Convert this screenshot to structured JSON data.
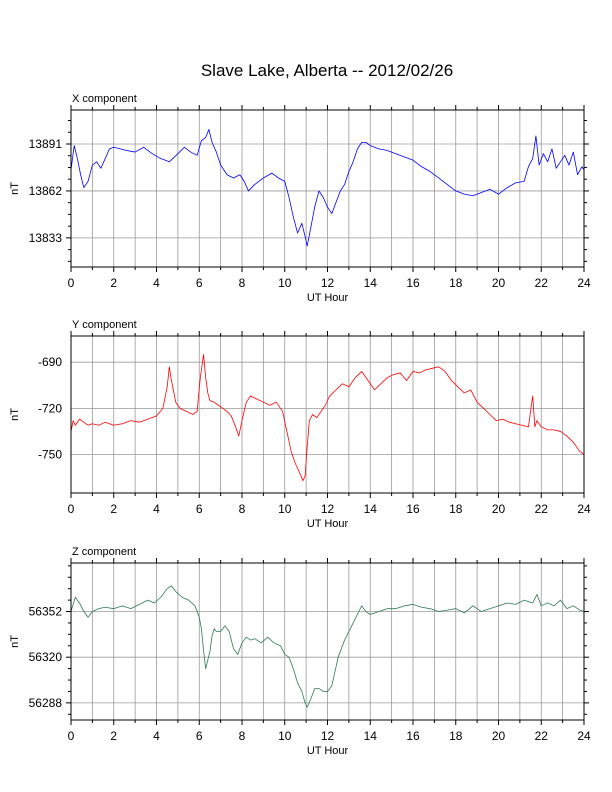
{
  "page": {
    "title": "Slave Lake, Alberta -- 2012/02/26"
  },
  "chart_data": [
    {
      "type": "line",
      "title": "X component",
      "xlabel": "UT Hour",
      "ylabel": "nT",
      "xlim": [
        0,
        24
      ],
      "ylim": [
        13815,
        13912
      ],
      "xticks": [
        0,
        2,
        4,
        6,
        8,
        10,
        12,
        14,
        16,
        18,
        20,
        22,
        24
      ],
      "yticks": [
        13833,
        13862,
        13891
      ],
      "grid": true,
      "color": "#0000ff",
      "series": [
        {
          "x": [
            0,
            0.15,
            0.3,
            0.45,
            0.6,
            0.8,
            1.0,
            1.2,
            1.4,
            1.6,
            1.8,
            2.0,
            2.3,
            2.6,
            3.0,
            3.4,
            3.8,
            4.2,
            4.6,
            5.0,
            5.3,
            5.6,
            5.9,
            6.1,
            6.3,
            6.45,
            6.6,
            6.8,
            7.0,
            7.3,
            7.6,
            7.9,
            8.1,
            8.3,
            8.6,
            9.0,
            9.4,
            9.7,
            10.0,
            10.2,
            10.4,
            10.6,
            10.8,
            10.95,
            11.05,
            11.2,
            11.4,
            11.6,
            11.8,
            12.0,
            12.2,
            12.4,
            12.6,
            12.8,
            13.0,
            13.2,
            13.4,
            13.6,
            13.8,
            14.0,
            14.4,
            14.8,
            15.2,
            15.6,
            16.0,
            16.4,
            16.8,
            17.2,
            17.6,
            18.0,
            18.4,
            18.8,
            19.2,
            19.6,
            20.0,
            20.4,
            20.8,
            21.2,
            21.4,
            21.6,
            21.75,
            21.9,
            22.1,
            22.3,
            22.5,
            22.7,
            22.9,
            23.1,
            23.3,
            23.5,
            23.7,
            23.9,
            24.0
          ],
          "y": [
            13875,
            13890,
            13882,
            13872,
            13864,
            13868,
            13878,
            13880,
            13876,
            13882,
            13888,
            13889,
            13888,
            13887,
            13886,
            13889,
            13885,
            13882,
            13880,
            13885,
            13889,
            13886,
            13884,
            13893,
            13895,
            13900,
            13892,
            13886,
            13878,
            13872,
            13870,
            13872,
            13868,
            13862,
            13866,
            13870,
            13873,
            13870,
            13868,
            13858,
            13846,
            13836,
            13842,
            13834,
            13828,
            13838,
            13852,
            13862,
            13858,
            13852,
            13848,
            13855,
            13862,
            13866,
            13874,
            13880,
            13888,
            13892,
            13892,
            13890,
            13888,
            13887,
            13885,
            13883,
            13881,
            13877,
            13874,
            13870,
            13866,
            13862,
            13860,
            13859,
            13861,
            13863,
            13860,
            13864,
            13867,
            13868,
            13877,
            13882,
            13896,
            13878,
            13885,
            13880,
            13888,
            13876,
            13880,
            13884,
            13878,
            13886,
            13872,
            13877,
            13875
          ]
        }
      ]
    },
    {
      "type": "line",
      "title": "Y component",
      "xlabel": "UT Hour",
      "ylabel": "nT",
      "xlim": [
        0,
        24
      ],
      "ylim": [
        -775,
        -673
      ],
      "xticks": [
        0,
        2,
        4,
        6,
        8,
        10,
        12,
        14,
        16,
        18,
        20,
        22,
        24
      ],
      "yticks": [
        -690,
        -720,
        -750
      ],
      "grid": true,
      "color": "#ff0000",
      "series": [
        {
          "x": [
            0,
            0.1,
            0.2,
            0.4,
            0.6,
            0.8,
            1.0,
            1.3,
            1.6,
            2.0,
            2.4,
            2.8,
            3.2,
            3.6,
            4.0,
            4.3,
            4.5,
            4.6,
            4.7,
            4.9,
            5.1,
            5.4,
            5.7,
            5.9,
            6.05,
            6.2,
            6.3,
            6.4,
            6.5,
            6.7,
            6.9,
            7.1,
            7.3,
            7.5,
            7.7,
            7.85,
            8.0,
            8.2,
            8.4,
            8.7,
            9.0,
            9.3,
            9.6,
            9.9,
            10.1,
            10.3,
            10.5,
            10.7,
            10.85,
            10.95,
            11.05,
            11.15,
            11.3,
            11.5,
            11.7,
            11.9,
            12.1,
            12.4,
            12.7,
            13.0,
            13.3,
            13.6,
            13.9,
            14.2,
            14.5,
            14.8,
            15.1,
            15.4,
            15.7,
            16.0,
            16.3,
            16.6,
            16.9,
            17.2,
            17.5,
            17.8,
            18.1,
            18.4,
            18.7,
            19.0,
            19.3,
            19.6,
            19.9,
            20.2,
            20.5,
            20.8,
            21.1,
            21.4,
            21.6,
            21.7,
            21.8,
            22.0,
            22.3,
            22.6,
            22.9,
            23.2,
            23.5,
            23.8,
            24.0
          ],
          "y": [
            -735,
            -728,
            -731,
            -727,
            -729,
            -731,
            -730,
            -731,
            -729,
            -731,
            -730,
            -728,
            -729,
            -727,
            -725,
            -720,
            -706,
            -693,
            -702,
            -716,
            -720,
            -722,
            -724,
            -722,
            -700,
            -685,
            -700,
            -710,
            -715,
            -716,
            -718,
            -720,
            -722,
            -725,
            -732,
            -738,
            -728,
            -716,
            -712,
            -714,
            -716,
            -718,
            -716,
            -722,
            -735,
            -748,
            -756,
            -762,
            -767,
            -764,
            -745,
            -728,
            -724,
            -726,
            -722,
            -718,
            -712,
            -708,
            -704,
            -706,
            -700,
            -696,
            -702,
            -708,
            -704,
            -700,
            -698,
            -697,
            -702,
            -696,
            -697,
            -695,
            -694,
            -693,
            -696,
            -702,
            -706,
            -710,
            -708,
            -716,
            -720,
            -724,
            -728,
            -727,
            -729,
            -730,
            -731,
            -732,
            -712,
            -732,
            -728,
            -732,
            -734,
            -734,
            -735,
            -738,
            -742,
            -748,
            -750
          ]
        }
      ]
    },
    {
      "type": "line",
      "title": "Z component",
      "xlabel": "UT Hour",
      "ylabel": "nT",
      "xlim": [
        0,
        24
      ],
      "ylim": [
        56276,
        56386
      ],
      "xticks": [
        0,
        2,
        4,
        6,
        8,
        10,
        12,
        14,
        16,
        18,
        20,
        22,
        24
      ],
      "yticks": [
        56288,
        56320,
        56352
      ],
      "grid": true,
      "color": "#2e7d4f",
      "series": [
        {
          "x": [
            0,
            0.2,
            0.4,
            0.6,
            0.8,
            1.0,
            1.3,
            1.6,
            2.0,
            2.4,
            2.8,
            3.2,
            3.6,
            3.9,
            4.2,
            4.5,
            4.7,
            4.9,
            5.2,
            5.5,
            5.8,
            6.0,
            6.1,
            6.2,
            6.3,
            6.4,
            6.5,
            6.6,
            6.7,
            6.8,
            7.0,
            7.2,
            7.4,
            7.6,
            7.8,
            8.0,
            8.2,
            8.4,
            8.6,
            8.9,
            9.2,
            9.5,
            9.8,
            10.0,
            10.2,
            10.4,
            10.6,
            10.8,
            10.95,
            11.05,
            11.2,
            11.4,
            11.6,
            11.8,
            12.0,
            12.2,
            12.5,
            12.8,
            13.0,
            13.2,
            13.4,
            13.6,
            13.8,
            14.0,
            14.4,
            14.8,
            15.2,
            15.6,
            16.0,
            16.4,
            16.8,
            17.2,
            17.6,
            18.0,
            18.4,
            18.8,
            19.2,
            19.6,
            20.0,
            20.4,
            20.8,
            21.2,
            21.6,
            21.8,
            22.0,
            22.3,
            22.6,
            22.9,
            23.2,
            23.5,
            23.8,
            24.0
          ],
          "y": [
            56352,
            56362,
            56358,
            56352,
            56348,
            56352,
            56354,
            56355,
            56354,
            56356,
            56354,
            56357,
            56360,
            56358,
            56362,
            56368,
            56370,
            56366,
            56362,
            56360,
            56356,
            56348,
            56340,
            56325,
            56312,
            56318,
            56324,
            56335,
            56340,
            56338,
            56338,
            56342,
            56338,
            56326,
            56322,
            56330,
            56334,
            56332,
            56333,
            56330,
            56334,
            56330,
            56328,
            56322,
            56320,
            56312,
            56302,
            56296,
            56288,
            56285,
            56290,
            56298,
            56298,
            56296,
            56296,
            56300,
            56320,
            56332,
            56338,
            56344,
            56350,
            56356,
            56352,
            56350,
            56352,
            56354,
            56354,
            56356,
            56357,
            56355,
            56354,
            56352,
            56353,
            56354,
            56351,
            56356,
            56352,
            56354,
            56356,
            56358,
            56357,
            56360,
            56358,
            56364,
            56356,
            56358,
            56356,
            56360,
            56354,
            56356,
            56353,
            56352
          ]
        }
      ]
    }
  ]
}
